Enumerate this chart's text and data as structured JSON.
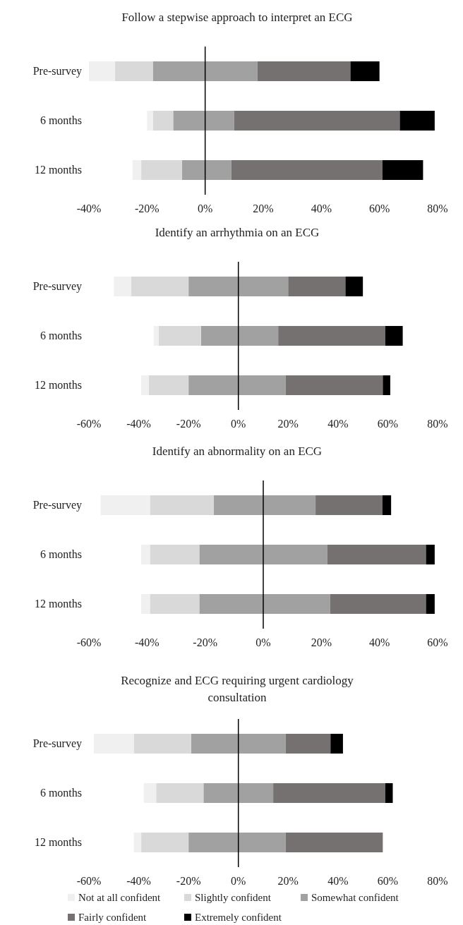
{
  "chart_data": [
    {
      "type": "bar",
      "orientation": "horizontal",
      "stacked": true,
      "title": "Follow a stepwise approach to interpret an ECG",
      "categories": [
        "Pre-survey",
        "6 months",
        "12 months"
      ],
      "xlim": [
        -40,
        80
      ],
      "xticks": [
        {
          "value": -40,
          "label": "-40%"
        },
        {
          "value": -20,
          "label": "-20%"
        },
        {
          "value": 0,
          "label": "0%"
        },
        {
          "value": 20,
          "label": "20%"
        },
        {
          "value": 40,
          "label": "40%"
        },
        {
          "value": 60,
          "label": "60%"
        },
        {
          "value": 80,
          "label": "80%"
        }
      ],
      "grid": false,
      "legend": false,
      "ref_lines": [
        {
          "axis": "x",
          "value": 0,
          "color": "#000000"
        }
      ],
      "series": [
        {
          "color": "#a1a1a1",
          "values": [
            -18,
            -11,
            -8
          ]
        },
        {
          "color": "#d9d9d9",
          "values": [
            -13,
            -7,
            -14
          ]
        },
        {
          "color": "#f0f0f0",
          "values": [
            -9,
            -2,
            -3
          ]
        },
        {
          "color": "#a1a1a1",
          "values": [
            18,
            10,
            9
          ]
        },
        {
          "color": "#767171",
          "values": [
            32,
            57,
            52
          ]
        },
        {
          "color": "#000000",
          "values": [
            10,
            12,
            14
          ]
        }
      ]
    },
    {
      "type": "bar",
      "orientation": "horizontal",
      "stacked": true,
      "title": "Identify an arrhythmia on an ECG",
      "categories": [
        "Pre-survey",
        "6 months",
        "12 months"
      ],
      "xlim": [
        -60,
        80
      ],
      "xticks": [
        {
          "value": -60,
          "label": "-60%"
        },
        {
          "value": -40,
          "label": "-40%"
        },
        {
          "value": -20,
          "label": "-20%"
        },
        {
          "value": 0,
          "label": "0%"
        },
        {
          "value": 20,
          "label": "20%"
        },
        {
          "value": 40,
          "label": "40%"
        },
        {
          "value": 60,
          "label": "60%"
        },
        {
          "value": 80,
          "label": "80%"
        }
      ],
      "grid": false,
      "legend": false,
      "ref_lines": [
        {
          "axis": "x",
          "value": 0,
          "color": "#000000"
        }
      ],
      "series": [
        {
          "color": "#a1a1a1",
          "values": [
            -20,
            -15,
            -20
          ]
        },
        {
          "color": "#d9d9d9",
          "values": [
            -23,
            -17,
            -16
          ]
        },
        {
          "color": "#f0f0f0",
          "values": [
            -7,
            -2,
            -3
          ]
        },
        {
          "color": "#a1a1a1",
          "values": [
            20,
            16,
            19
          ]
        },
        {
          "color": "#767171",
          "values": [
            23,
            43,
            39
          ]
        },
        {
          "color": "#000000",
          "values": [
            7,
            7,
            3
          ]
        }
      ]
    },
    {
      "type": "bar",
      "orientation": "horizontal",
      "stacked": true,
      "title": "Identify an abnormality on an ECG",
      "categories": [
        "Pre-survey",
        "6 months",
        "12 months"
      ],
      "xlim": [
        -60,
        60
      ],
      "xticks": [
        {
          "value": -60,
          "label": "-60%"
        },
        {
          "value": -40,
          "label": "-40%"
        },
        {
          "value": -20,
          "label": "-20%"
        },
        {
          "value": 0,
          "label": "0%"
        },
        {
          "value": 20,
          "label": "20%"
        },
        {
          "value": 40,
          "label": "40%"
        },
        {
          "value": 60,
          "label": "60%"
        }
      ],
      "grid": false,
      "legend": false,
      "ref_lines": [
        {
          "axis": "x",
          "value": 0,
          "color": "#000000"
        }
      ],
      "series": [
        {
          "color": "#a1a1a1",
          "values": [
            -17,
            -22,
            -22
          ]
        },
        {
          "color": "#d9d9d9",
          "values": [
            -22,
            -17,
            -17
          ]
        },
        {
          "color": "#f0f0f0",
          "values": [
            -17,
            -3,
            -3
          ]
        },
        {
          "color": "#a1a1a1",
          "values": [
            18,
            22,
            23
          ]
        },
        {
          "color": "#767171",
          "values": [
            23,
            34,
            33
          ]
        },
        {
          "color": "#000000",
          "values": [
            3,
            3,
            3
          ]
        }
      ]
    },
    {
      "type": "bar",
      "orientation": "horizontal",
      "stacked": true,
      "title": "Recognize and ECG requiring urgent cardiology consultation",
      "categories": [
        "Pre-survey",
        "6 months",
        "12 months"
      ],
      "xlim": [
        -60,
        80
      ],
      "xticks": [
        {
          "value": -60,
          "label": "-60%"
        },
        {
          "value": -40,
          "label": "-40%"
        },
        {
          "value": -20,
          "label": "-20%"
        },
        {
          "value": 0,
          "label": "0%"
        },
        {
          "value": 20,
          "label": "20%"
        },
        {
          "value": 40,
          "label": "40%"
        },
        {
          "value": 60,
          "label": "60%"
        },
        {
          "value": 80,
          "label": "80%"
        }
      ],
      "grid": false,
      "legend": "bottom",
      "ref_lines": [
        {
          "axis": "x",
          "value": 0,
          "color": "#000000"
        }
      ],
      "series": [
        {
          "name": "Somewhat confident",
          "color": "#a1a1a1",
          "values": [
            -19,
            -14,
            -20
          ]
        },
        {
          "name": "Slightly confident",
          "color": "#d9d9d9",
          "values": [
            -23,
            -19,
            -19
          ]
        },
        {
          "name": "Not at all confident",
          "color": "#f0f0f0",
          "values": [
            -16,
            -5,
            -3
          ]
        },
        {
          "color": "#a1a1a1",
          "values": [
            19,
            14,
            19
          ]
        },
        {
          "name": "Fairly confident",
          "color": "#767171",
          "values": [
            18,
            45,
            39
          ]
        },
        {
          "name": "Extremely confident",
          "color": "#000000",
          "values": [
            5,
            3,
            0
          ]
        }
      ]
    }
  ]
}
